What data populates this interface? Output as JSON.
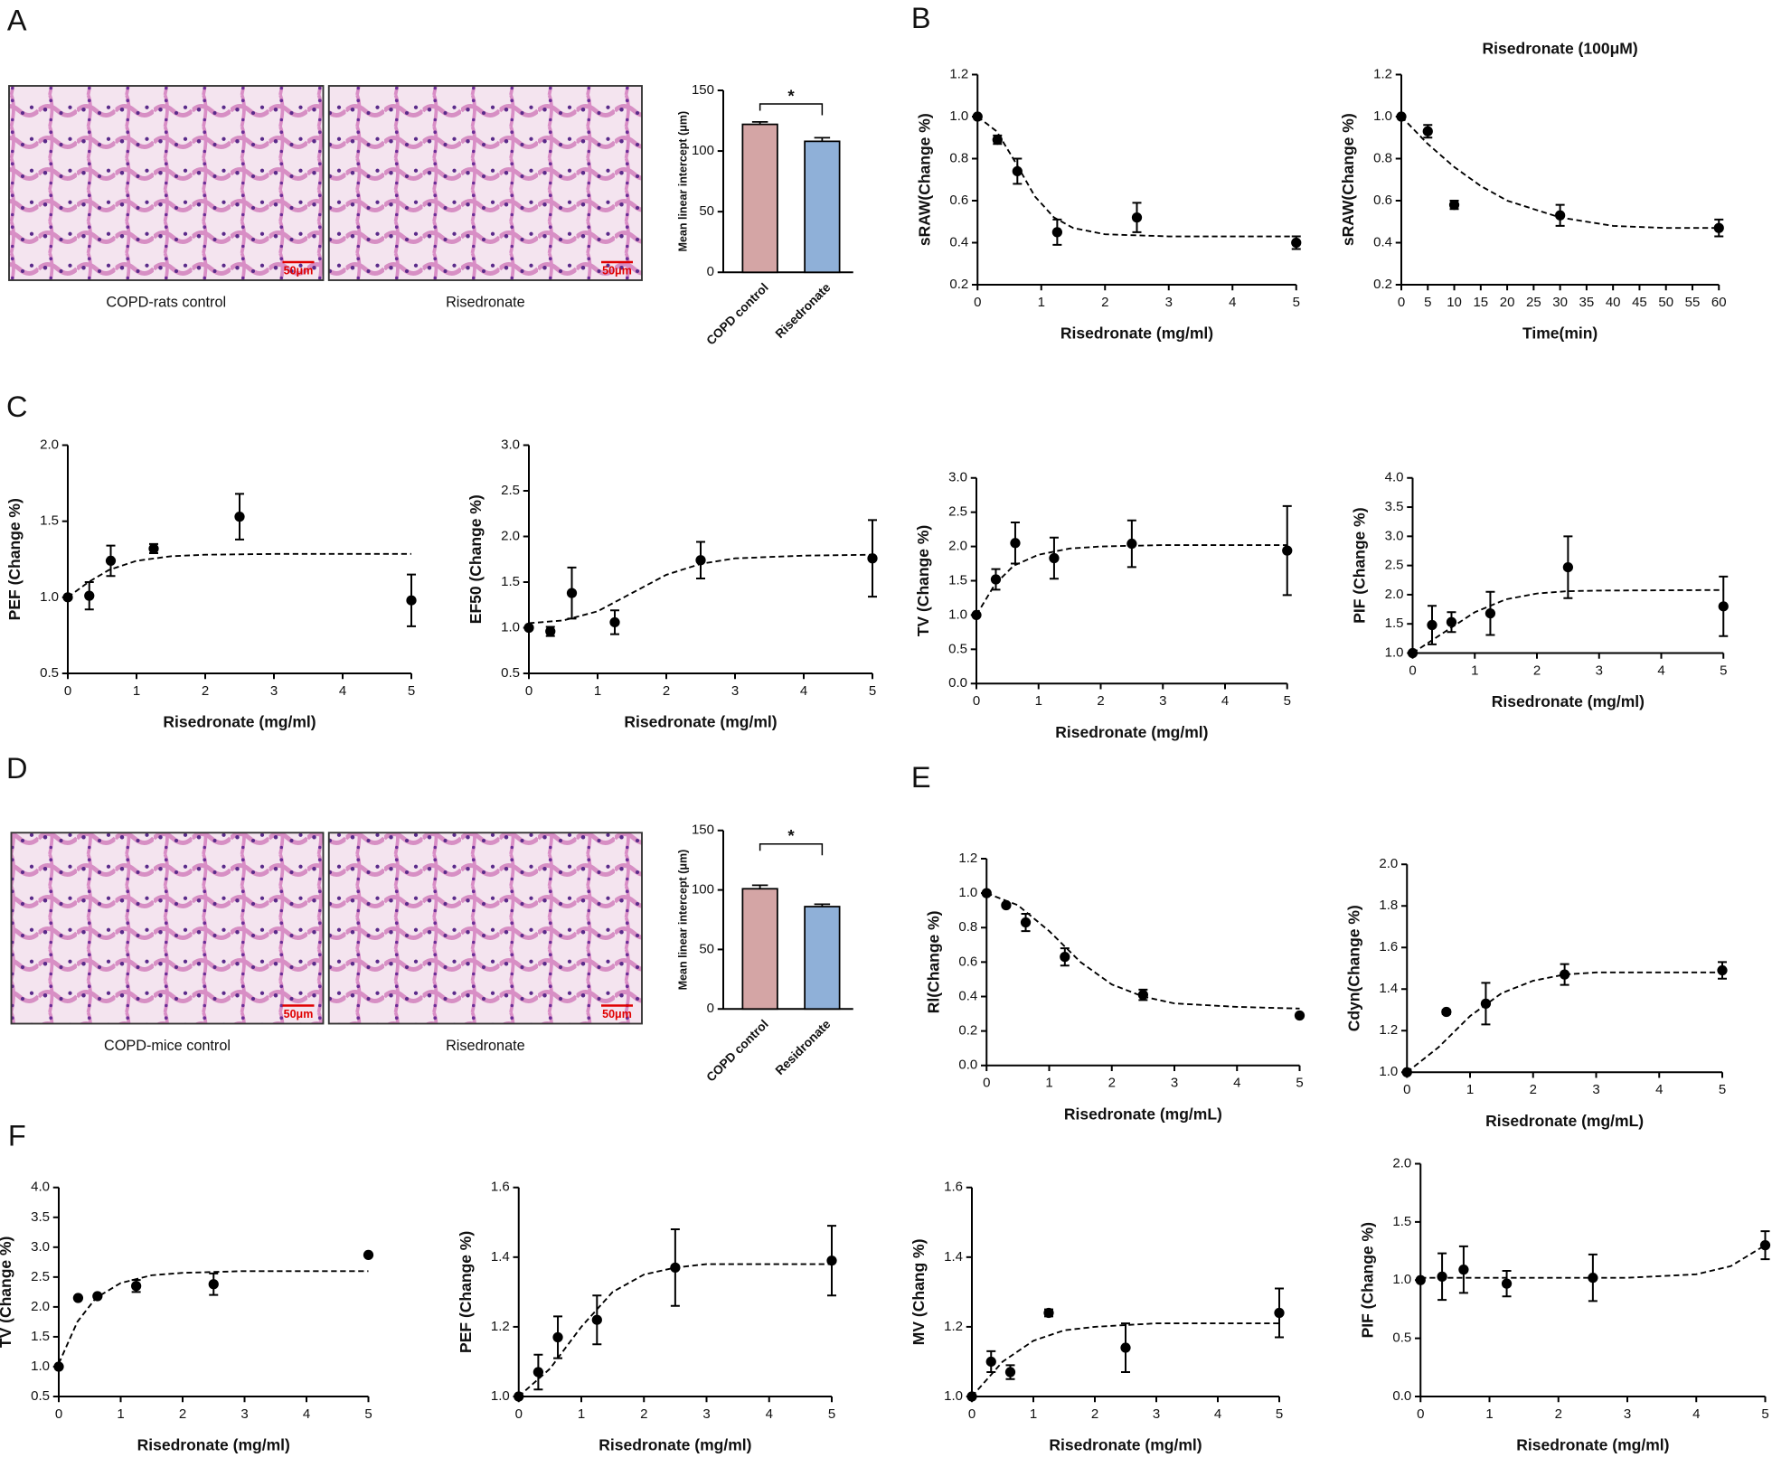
{
  "chart_data": [
    {
      "type": "bar",
      "panel": "A",
      "images": [
        {
          "caption": "COPD-rats control",
          "scale_bar": "50μm"
        },
        {
          "caption": "Risedronate",
          "scale_bar": "50μm"
        }
      ],
      "y_label": "Mean linear intercept (μm)",
      "categories": [
        "COPD control",
        "Risedronate"
      ],
      "values": [
        122,
        108
      ],
      "errors": [
        2,
        3
      ],
      "colors": [
        "#d4a5a5",
        "#8fb0d8"
      ],
      "ylim": [
        0,
        150
      ],
      "yticks": [
        0,
        50,
        100,
        150
      ],
      "annotation": "*"
    },
    {
      "type": "scatter",
      "panel": "B",
      "x_label": "Risedronate (mg/ml)",
      "y_label": "sRAW(Change %)",
      "xlim": [
        0,
        5
      ],
      "ylim": [
        0.2,
        1.2
      ],
      "xticks": [
        0,
        1,
        2,
        3,
        4,
        5
      ],
      "yticks": [
        0.2,
        0.4,
        0.6,
        0.8,
        {
          "value": 1,
          "label": "1.0"
        },
        1.2
      ],
      "x": [
        0,
        0.3125,
        0.625,
        1.25,
        2.5,
        5
      ],
      "series": [
        {
          "color": "#000000",
          "values": [
            1.0,
            0.89,
            0.74,
            0.45,
            0.52,
            0.4
          ],
          "errors": [
            0,
            0.02,
            0.06,
            0.06,
            0.07,
            0.03
          ]
        }
      ],
      "fit": {
        "x": [
          0,
          0.3,
          0.6,
          0.9,
          1.2,
          1.5,
          2,
          3,
          5
        ],
        "values": [
          1.0,
          0.93,
          0.78,
          0.62,
          0.52,
          0.47,
          0.44,
          0.43,
          0.43
        ]
      }
    },
    {
      "type": "scatter",
      "title": "Risedronate (100μM)",
      "x_label": "Time(min)",
      "y_label": "sRAW(Change %)",
      "xlim": [
        0,
        60
      ],
      "ylim": [
        0.2,
        1.2
      ],
      "xticks": [
        0,
        5,
        10,
        15,
        20,
        25,
        30,
        35,
        40,
        45,
        50,
        55,
        60
      ],
      "yticks": [
        0.2,
        0.4,
        0.6,
        0.8,
        {
          "value": 1,
          "label": "1.0"
        },
        1.2
      ],
      "x": [
        0,
        5,
        10,
        30,
        60
      ],
      "series": [
        {
          "color": "#000000",
          "values": [
            1.0,
            0.93,
            0.58,
            0.53,
            0.47
          ],
          "errors": [
            0,
            0.03,
            0.02,
            0.05,
            0.04
          ]
        }
      ],
      "fit": {
        "x": [
          0,
          5,
          10,
          15,
          20,
          30,
          40,
          50,
          60
        ],
        "values": [
          1.0,
          0.87,
          0.76,
          0.67,
          0.6,
          0.52,
          0.48,
          0.47,
          0.47
        ]
      }
    },
    {
      "type": "scatter",
      "panel": "C",
      "x_label": "Risedronate (mg/ml)",
      "y_label": "PEF (Change %)",
      "xlim": [
        0,
        5
      ],
      "ylim": [
        0.5,
        2
      ],
      "xticks": [
        0,
        1,
        2,
        3,
        4,
        5
      ],
      "yticks": [
        0.5,
        {
          "value": 1,
          "label": "1.0"
        },
        1.5,
        {
          "value": 2,
          "label": "2.0"
        }
      ],
      "x": [
        0,
        0.3125,
        0.625,
        1.25,
        2.5,
        5
      ],
      "series": [
        {
          "color": "#000000",
          "values": [
            1.0,
            1.01,
            1.24,
            1.32,
            1.53,
            0.98
          ],
          "errors": [
            0,
            0.09,
            0.1,
            0.03,
            0.15,
            0.17
          ]
        }
      ],
      "fit": {
        "x": [
          0,
          0.3,
          0.6,
          1,
          1.5,
          2,
          3,
          5
        ],
        "values": [
          1.0,
          1.1,
          1.18,
          1.24,
          1.27,
          1.28,
          1.285,
          1.285
        ]
      }
    },
    {
      "type": "scatter",
      "x_label": "Risedronate (mg/ml)",
      "y_label": "EF50 (Change %)",
      "xlim": [
        0,
        5
      ],
      "ylim": [
        0.5,
        3
      ],
      "xticks": [
        0,
        1,
        2,
        3,
        4,
        5
      ],
      "yticks": [
        0.5,
        {
          "value": 1,
          "label": "1.0"
        },
        1.5,
        {
          "value": 2,
          "label": "2.0"
        },
        2.5,
        {
          "value": 3,
          "label": "3.0"
        }
      ],
      "x": [
        0,
        0.3125,
        0.625,
        1.25,
        2.5,
        5
      ],
      "series": [
        {
          "color": "#000000",
          "values": [
            1.0,
            0.96,
            1.38,
            1.06,
            1.74,
            1.76
          ],
          "errors": [
            0,
            0.05,
            0.28,
            0.13,
            0.2,
            0.42
          ]
        }
      ],
      "fit": {
        "x": [
          0,
          0.5,
          1,
          1.5,
          2,
          2.5,
          3,
          4,
          5
        ],
        "values": [
          1.05,
          1.08,
          1.18,
          1.38,
          1.58,
          1.7,
          1.76,
          1.79,
          1.8
        ]
      }
    },
    {
      "type": "scatter",
      "x_label": "Risedronate (mg/ml)",
      "y_label": "TV (Change %)",
      "xlim": [
        0,
        5
      ],
      "ylim": [
        0,
        3
      ],
      "xticks": [
        0,
        1,
        2,
        3,
        4,
        5
      ],
      "yticks": [
        {
          "value": 0,
          "label": "0.0"
        },
        0.5,
        {
          "value": 1,
          "label": "1.0"
        },
        1.5,
        {
          "value": 2,
          "label": "2.0"
        },
        2.5,
        {
          "value": 3,
          "label": "3.0"
        }
      ],
      "x": [
        0,
        0.3125,
        0.625,
        1.25,
        2.5,
        5
      ],
      "series": [
        {
          "color": "#000000",
          "values": [
            1.0,
            1.52,
            2.05,
            1.83,
            2.04,
            1.94
          ],
          "errors": [
            0,
            0.15,
            0.3,
            0.3,
            0.34,
            0.65
          ]
        }
      ],
      "fit": {
        "x": [
          0,
          0.3,
          0.6,
          1,
          1.5,
          2,
          3,
          5
        ],
        "values": [
          1.0,
          1.45,
          1.72,
          1.88,
          1.97,
          2.0,
          2.02,
          2.02
        ]
      }
    },
    {
      "type": "scatter",
      "x_label": "Risedronate (mg/ml)",
      "y_label": "PIF (Change %)",
      "xlim": [
        0,
        5
      ],
      "ylim": [
        1,
        4
      ],
      "xticks": [
        0,
        1,
        2,
        3,
        4,
        5
      ],
      "yticks": [
        {
          "value": 1,
          "label": "1.0"
        },
        1.5,
        {
          "value": 2,
          "label": "2.0"
        },
        2.5,
        {
          "value": 3,
          "label": "3.0"
        },
        3.5,
        {
          "value": 4,
          "label": "4.0"
        }
      ],
      "x": [
        0,
        0.3125,
        0.625,
        1.25,
        2.5,
        5
      ],
      "series": [
        {
          "color": "#000000",
          "values": [
            1.0,
            1.48,
            1.53,
            1.68,
            2.47,
            1.8
          ],
          "errors": [
            0,
            0.33,
            0.17,
            0.37,
            0.53,
            0.51
          ]
        }
      ],
      "fit": {
        "x": [
          0,
          0.5,
          1,
          1.5,
          2,
          2.5,
          3,
          5
        ],
        "values": [
          1.0,
          1.35,
          1.7,
          1.92,
          2.02,
          2.06,
          2.07,
          2.08
        ]
      }
    },
    {
      "type": "bar",
      "panel": "D",
      "images": [
        {
          "caption": "COPD-mice control",
          "scale_bar": "50μm"
        },
        {
          "caption": "Risedronate",
          "scale_bar": "50μm"
        }
      ],
      "y_label": "Mean linear intercept (μm)",
      "categories": [
        "COPD control",
        "Residronate"
      ],
      "values": [
        101,
        86
      ],
      "errors": [
        3,
        2
      ],
      "colors": [
        "#d4a5a5",
        "#8fb0d8"
      ],
      "ylim": [
        0,
        150
      ],
      "yticks": [
        0,
        50,
        100,
        150
      ],
      "annotation": "*"
    },
    {
      "type": "scatter",
      "panel": "E",
      "x_label": "Risedronate (mg/mL)",
      "y_label": "Rl(Change %)",
      "xlim": [
        0,
        5
      ],
      "ylim": [
        0,
        1.2
      ],
      "xticks": [
        0,
        1,
        2,
        3,
        4,
        5
      ],
      "yticks": [
        {
          "value": 0,
          "label": "0.0"
        },
        0.2,
        0.4,
        0.6,
        0.8,
        {
          "value": 1,
          "label": "1.0"
        },
        1.2
      ],
      "x": [
        0,
        0.3125,
        0.625,
        1.25,
        2.5,
        5
      ],
      "series": [
        {
          "color": "#000000",
          "values": [
            1.0,
            0.93,
            0.83,
            0.63,
            0.41,
            0.29
          ],
          "errors": [
            0,
            0.01,
            0.05,
            0.05,
            0.03,
            0.01
          ]
        }
      ],
      "fit": {
        "x": [
          0,
          0.5,
          1,
          1.5,
          2,
          2.5,
          3,
          4,
          5
        ],
        "values": [
          1.0,
          0.93,
          0.78,
          0.6,
          0.47,
          0.4,
          0.36,
          0.34,
          0.33
        ]
      }
    },
    {
      "type": "scatter",
      "x_label": "Risedronate (mg/mL)",
      "y_label": "Cdyn(Change %)",
      "xlim": [
        0,
        5
      ],
      "ylim": [
        1,
        2
      ],
      "xticks": [
        0,
        1,
        2,
        3,
        4,
        5
      ],
      "yticks": [
        {
          "value": 1,
          "label": "1.0"
        },
        1.2,
        1.4,
        1.6,
        1.8,
        {
          "value": 2,
          "label": "2.0"
        }
      ],
      "x": [
        0,
        0.625,
        1.25,
        2.5,
        5
      ],
      "series": [
        {
          "color": "#000000",
          "values": [
            1.0,
            1.29,
            1.33,
            1.47,
            1.49
          ],
          "errors": [
            0,
            0.01,
            0.1,
            0.05,
            0.04
          ]
        }
      ],
      "fit": {
        "x": [
          0,
          0.5,
          1,
          1.5,
          2,
          2.5,
          3,
          5
        ],
        "values": [
          1.0,
          1.12,
          1.27,
          1.38,
          1.44,
          1.47,
          1.48,
          1.48
        ]
      }
    },
    {
      "type": "scatter",
      "panel": "F",
      "x_label": "Risedronate (mg/ml)",
      "y_label": "TV (Change %)",
      "xlim": [
        0,
        5
      ],
      "ylim": [
        0.5,
        4
      ],
      "xticks": [
        0,
        1,
        2,
        3,
        4,
        5
      ],
      "yticks": [
        0.5,
        {
          "value": 1,
          "label": "1.0"
        },
        1.5,
        {
          "value": 2,
          "label": "2.0"
        },
        2.5,
        {
          "value": 3,
          "label": "3.0"
        },
        3.5,
        {
          "value": 4,
          "label": "4.0"
        }
      ],
      "x": [
        0,
        0.3125,
        0.625,
        1.25,
        2.5,
        5
      ],
      "series": [
        {
          "color": "#000000",
          "values": [
            1.0,
            2.15,
            2.18,
            2.35,
            2.38,
            2.87
          ],
          "errors": [
            0,
            0,
            0,
            0.1,
            0.18,
            0
          ]
        }
      ],
      "fit": {
        "x": [
          0,
          0.3,
          0.6,
          1,
          1.5,
          2,
          3,
          5
        ],
        "values": [
          1.05,
          1.75,
          2.15,
          2.4,
          2.53,
          2.57,
          2.6,
          2.6
        ]
      }
    },
    {
      "type": "scatter",
      "x_label": "Risedronate (mg/ml)",
      "y_label": "PEF (Change %)",
      "xlim": [
        0,
        5
      ],
      "ylim": [
        1,
        1.6
      ],
      "xticks": [
        0,
        1,
        2,
        3,
        4,
        5
      ],
      "yticks": [
        {
          "value": 1,
          "label": "1.0"
        },
        1.2,
        1.4,
        1.6
      ],
      "x": [
        0,
        0.3125,
        0.625,
        1.25,
        2.5,
        5
      ],
      "series": [
        {
          "color": "#000000",
          "values": [
            1.0,
            1.07,
            1.17,
            1.22,
            1.37,
            1.39
          ],
          "errors": [
            0,
            0.05,
            0.06,
            0.07,
            0.11,
            0.1
          ]
        }
      ],
      "fit": {
        "x": [
          0,
          0.5,
          1,
          1.5,
          2,
          2.5,
          3,
          5
        ],
        "values": [
          1.0,
          1.08,
          1.2,
          1.3,
          1.35,
          1.37,
          1.38,
          1.38
        ]
      }
    },
    {
      "type": "scatter",
      "x_label": "Risedronate (mg/ml)",
      "y_label": "MV (Chang %)",
      "xlim": [
        0,
        5
      ],
      "ylim": [
        1,
        1.6
      ],
      "xticks": [
        0,
        1,
        2,
        3,
        4,
        5
      ],
      "yticks": [
        {
          "value": 1,
          "label": "1.0"
        },
        1.2,
        1.4,
        1.6
      ],
      "x": [
        0,
        0.3125,
        0.625,
        1.25,
        2.5,
        5
      ],
      "series": [
        {
          "color": "#000000",
          "values": [
            1.0,
            1.1,
            1.07,
            1.24,
            1.14,
            1.24
          ],
          "errors": [
            0,
            0.03,
            0.02,
            0.01,
            0.07,
            0.07
          ]
        }
      ],
      "fit": {
        "x": [
          0,
          0.5,
          1,
          1.5,
          2,
          3,
          5
        ],
        "values": [
          1.0,
          1.1,
          1.16,
          1.19,
          1.2,
          1.21,
          1.21
        ]
      }
    },
    {
      "type": "scatter",
      "x_label": "Risedronate (mg/ml)",
      "y_label": "PIF (Change %)",
      "xlim": [
        0,
        5
      ],
      "ylim": [
        0,
        2
      ],
      "xticks": [
        0,
        1,
        2,
        3,
        4,
        5
      ],
      "yticks": [
        {
          "value": 0,
          "label": "0.0"
        },
        0.5,
        {
          "value": 1,
          "label": "1.0"
        },
        1.5,
        {
          "value": 2,
          "label": "2.0"
        }
      ],
      "x": [
        0,
        0.3125,
        0.625,
        1.25,
        2.5,
        5
      ],
      "series": [
        {
          "color": "#000000",
          "values": [
            1.0,
            1.03,
            1.09,
            0.97,
            1.02,
            1.3
          ],
          "errors": [
            0,
            0.2,
            0.2,
            0.11,
            0.2,
            0.12
          ]
        }
      ],
      "fit": {
        "x": [
          0,
          2,
          3,
          4,
          4.5,
          5
        ],
        "values": [
          1.02,
          1.02,
          1.02,
          1.05,
          1.12,
          1.3
        ]
      }
    }
  ]
}
